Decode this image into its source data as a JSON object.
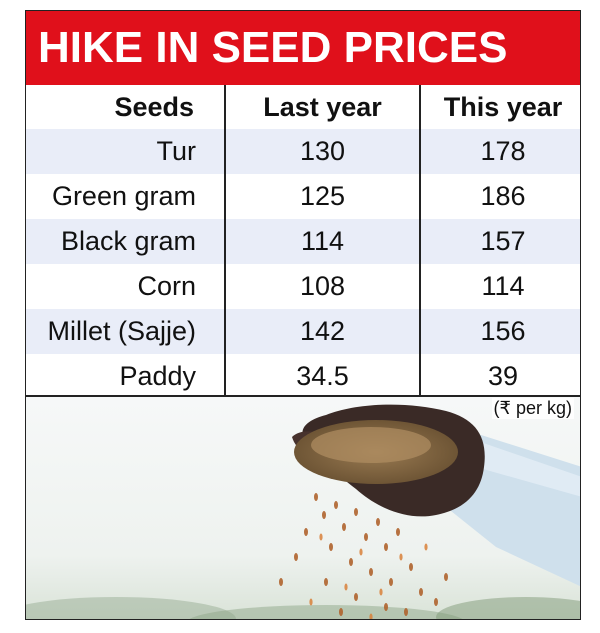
{
  "chart_data": {
    "type": "table",
    "title": "HIKE IN SEED PRICES",
    "columns": [
      "Seeds",
      "Last year",
      "This year"
    ],
    "rows": [
      {
        "seed": "Tur",
        "last_year": "130",
        "this_year": "178"
      },
      {
        "seed": "Green gram",
        "last_year": "125",
        "this_year": "186"
      },
      {
        "seed": "Black gram",
        "last_year": "114",
        "this_year": "157"
      },
      {
        "seed": "Corn",
        "last_year": "108",
        "this_year": "114"
      },
      {
        "seed": "Millet (Sajje)",
        "last_year": "142",
        "this_year": "156"
      },
      {
        "seed": "Paddy",
        "last_year": "34.5",
        "this_year": "39"
      }
    ],
    "unit": "(₹ per kg)"
  },
  "colors": {
    "banner": "#e0101b",
    "row_shade": "#e9edf8",
    "text": "#111111"
  }
}
